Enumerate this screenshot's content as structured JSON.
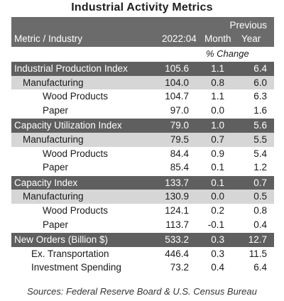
{
  "title": "Industrial Activity Metrics",
  "header": {
    "previous": "Previous",
    "metric_industry": "Metric / Industry",
    "date": "2022:04",
    "month": "Month",
    "year": "Year",
    "pct_change": "% Change"
  },
  "rows": [
    {
      "label": "Industrial Production Index",
      "level": 0,
      "value": "105.6",
      "month": "1.1",
      "year": "6.4"
    },
    {
      "label": "Manufacturing",
      "level": 1,
      "value": "104.0",
      "month": "0.8",
      "year": "6.0"
    },
    {
      "label": "Wood Products",
      "level": 2,
      "value": "104.7",
      "month": "1.1",
      "year": "6.3"
    },
    {
      "label": "Paper",
      "level": 2,
      "value": "97.0",
      "month": "0.0",
      "year": "1.6"
    },
    {
      "label": "Capacity Utilization Index",
      "level": 0,
      "value": "79.0",
      "month": "1.0",
      "year": "5.6"
    },
    {
      "label": "Manufacturing",
      "level": 1,
      "value": "79.5",
      "month": "0.7",
      "year": "5.5"
    },
    {
      "label": "Wood Products",
      "level": 2,
      "value": "84.4",
      "month": "0.9",
      "year": "5.4"
    },
    {
      "label": "Paper",
      "level": 2,
      "value": "85.4",
      "month": "0.1",
      "year": "1.2"
    },
    {
      "label": "Capacity Index",
      "level": 0,
      "value": "133.7",
      "month": "0.1",
      "year": "0.7"
    },
    {
      "label": "Manufacturing",
      "level": 1,
      "value": "130.9",
      "month": "0.0",
      "year": "0.5"
    },
    {
      "label": "Wood Products",
      "level": 2,
      "value": "124.1",
      "month": "0.2",
      "year": "0.8"
    },
    {
      "label": "Paper",
      "level": 2,
      "value": "113.7",
      "month": "-0.1",
      "year": "0.4"
    },
    {
      "label": "New Orders (Billion $)",
      "level": 0,
      "value": "533.2",
      "month": "0.3",
      "year": "12.7"
    },
    {
      "label": "Ex. Transportation",
      "level": 3,
      "value": "446.4",
      "month": "0.3",
      "year": "11.5"
    },
    {
      "label": "Investment Spending",
      "level": 3,
      "value": "73.2",
      "month": "0.4",
      "year": "6.4"
    }
  ],
  "source": "Sources: Federal Reserve Board & U.S. Census Bureau"
}
